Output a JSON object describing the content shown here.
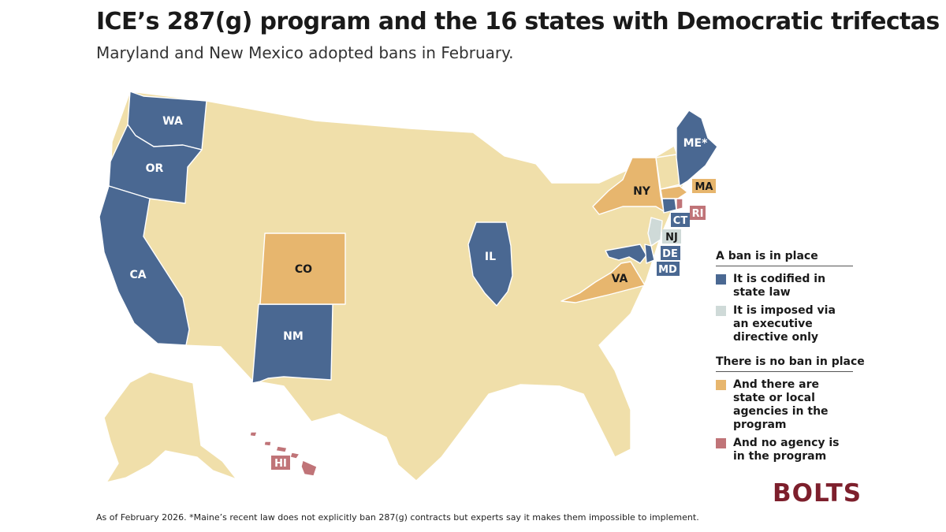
{
  "title": "ICE’s 287(g) program and the 16 states with Democratic trifectas",
  "subtitle": "Maryland and New Mexico adopted bans in February.",
  "colors": {
    "codified": "#4a6892",
    "executive": "#cfdad8",
    "agencies": "#e7b66e",
    "no_agency": "#c07478",
    "other": "#f0dfaa"
  },
  "legend": {
    "ban_heading": "A ban is in place",
    "codified": "It is codified in state law",
    "executive": "It is imposed via an executive directive only",
    "no_ban_heading": "There is no ban in place",
    "agencies": "And there are state or local agencies in the program",
    "no_agency": "And no agency is in the program"
  },
  "states": {
    "WA": "WA",
    "OR": "OR",
    "CA": "CA",
    "NM": "NM",
    "IL": "IL",
    "ME": "ME*",
    "CO": "CO",
    "NY": "NY",
    "VA": "VA",
    "MA": "MA",
    "CT": "CT",
    "RI": "RI",
    "NJ": "NJ",
    "DE": "DE",
    "MD": "MD",
    "HI": "HI"
  },
  "footnote": "As of February 2026. *Maine’s recent law does not explicitly ban 287(g) contracts but experts say it makes them impossible to implement.",
  "logo": "BOLTS"
}
